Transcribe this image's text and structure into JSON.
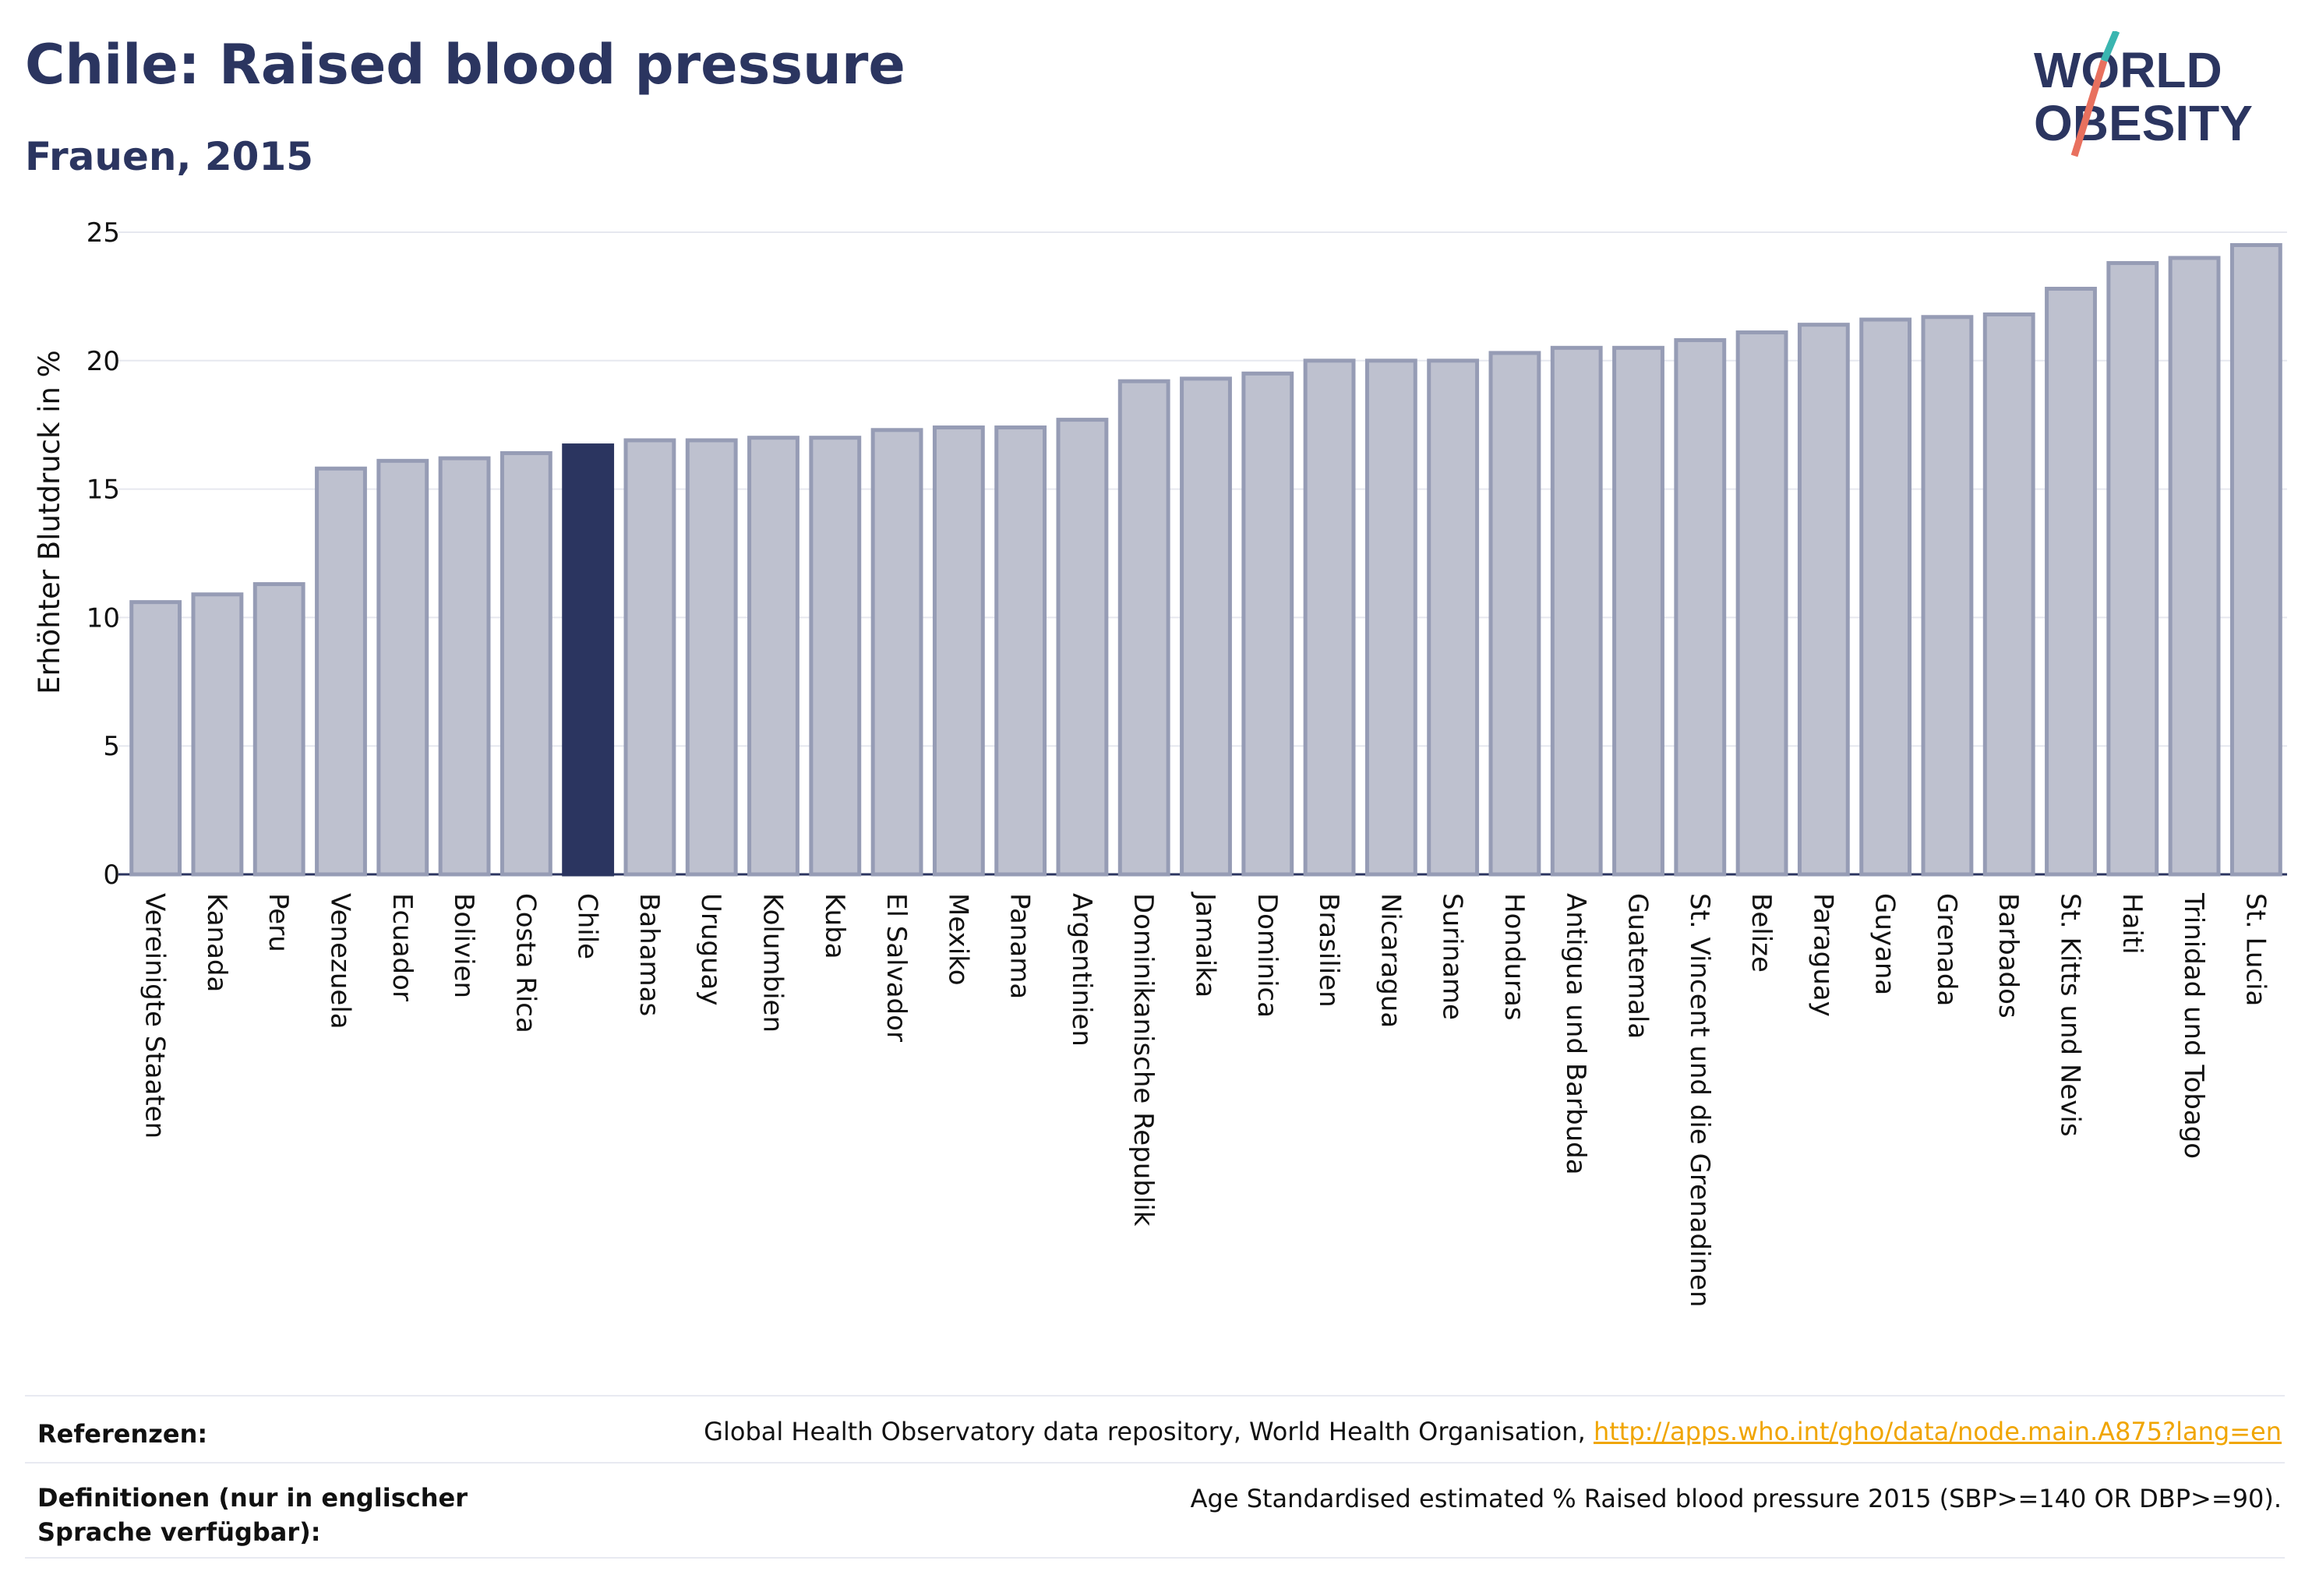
{
  "header": {
    "title": "Chile: Raised blood pressure",
    "subtitle": "Frauen, 2015",
    "logo_line1": "WORLD",
    "logo_line2": "OBESITY"
  },
  "colors": {
    "highlight": "#2b3560",
    "bar_fill": "#bec1cf",
    "bar_stroke": "#969cb5",
    "logo_slash": "#e8705e",
    "logo_slash_top": "#3ab5b0",
    "link": "#f0a500"
  },
  "chart_data": {
    "type": "bar",
    "title": "Chile: Raised blood pressure",
    "subtitle": "Frauen, 2015",
    "xlabel": "",
    "ylabel": "Erhöhter Blutdruck in %",
    "ylim": [
      0,
      25
    ],
    "yticks": [
      0,
      5,
      10,
      15,
      20,
      25
    ],
    "grid": true,
    "highlight": "Chile",
    "categories": [
      "Vereinigte Staaten",
      "Kanada",
      "Peru",
      "Venezuela",
      "Ecuador",
      "Bolivien",
      "Costa Rica",
      "Chile",
      "Bahamas",
      "Uruguay",
      "Kolumbien",
      "Kuba",
      "El Salvador",
      "Mexiko",
      "Panama",
      "Argentinien",
      "Dominikanische Republik",
      "Jamaika",
      "Dominica",
      "Brasilien",
      "Nicaragua",
      "Suriname",
      "Honduras",
      "Antigua und Barbuda",
      "Guatemala",
      "St. Vincent und die Grenadinen",
      "Belize",
      "Paraguay",
      "Guyana",
      "Grenada",
      "Barbados",
      "St. Kitts und Nevis",
      "Haiti",
      "Trinidad und Tobago",
      "St. Lucia"
    ],
    "values": [
      10.6,
      10.9,
      11.3,
      15.8,
      16.1,
      16.2,
      16.4,
      16.7,
      16.9,
      16.9,
      17.0,
      17.0,
      17.3,
      17.4,
      17.4,
      17.7,
      19.2,
      19.3,
      19.5,
      20.0,
      20.0,
      20.0,
      20.3,
      20.5,
      20.5,
      20.8,
      21.1,
      21.4,
      21.6,
      21.7,
      21.8,
      22.8,
      23.8,
      24.0,
      24.5
    ]
  },
  "footer": {
    "references_label": "Referenzen:",
    "references_text": "Global Health Observatory data repository, World Health Organisation,",
    "references_link": "http://apps.who.int/gho/data/node.main.A875?lang=en",
    "definitions_label": "Definitionen (nur in englischer Sprache verfügbar):",
    "definitions_text": "Age Standardised estimated % Raised blood pressure 2015 (SBP>=140 OR DBP>=90)."
  }
}
